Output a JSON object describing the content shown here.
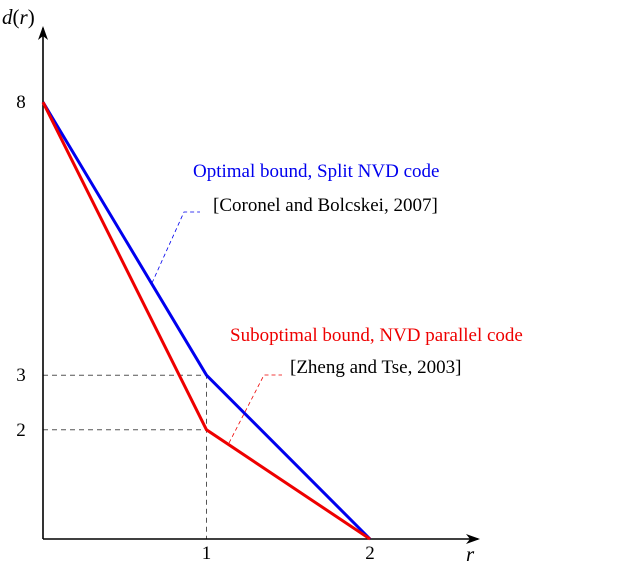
{
  "chart_data": {
    "type": "line",
    "title": "",
    "xlabel": "r",
    "ylabel": "d(r)",
    "xlim": [
      0,
      2.5
    ],
    "ylim": [
      0,
      8.5
    ],
    "xticks": [
      {
        "value": 1,
        "label": "1"
      },
      {
        "value": 2,
        "label": "2"
      }
    ],
    "yticks": [
      {
        "value": 8,
        "label": "8"
      },
      {
        "value": 3,
        "label": "3"
      },
      {
        "value": 2,
        "label": "2"
      }
    ],
    "grid": false,
    "reference_lines": [
      {
        "points": [
          [
            0,
            3
          ],
          [
            1,
            3
          ],
          [
            1,
            0
          ]
        ]
      },
      {
        "points": [
          [
            0,
            2
          ],
          [
            1,
            2
          ]
        ]
      }
    ],
    "series": [
      {
        "name": "Optimal bound, Split NVD code",
        "citation": "[Coronel and Bolcskei, 2007]",
        "color": "#0000ee",
        "points": [
          [
            0,
            8
          ],
          [
            1,
            3
          ],
          [
            2,
            0
          ]
        ]
      },
      {
        "name": "Suboptimal bound, NVD parallel code",
        "citation": "[Zheng and Tse, 2003]",
        "color": "#ee0000",
        "points": [
          [
            0,
            8
          ],
          [
            1,
            2
          ],
          [
            2,
            0
          ]
        ]
      }
    ]
  }
}
